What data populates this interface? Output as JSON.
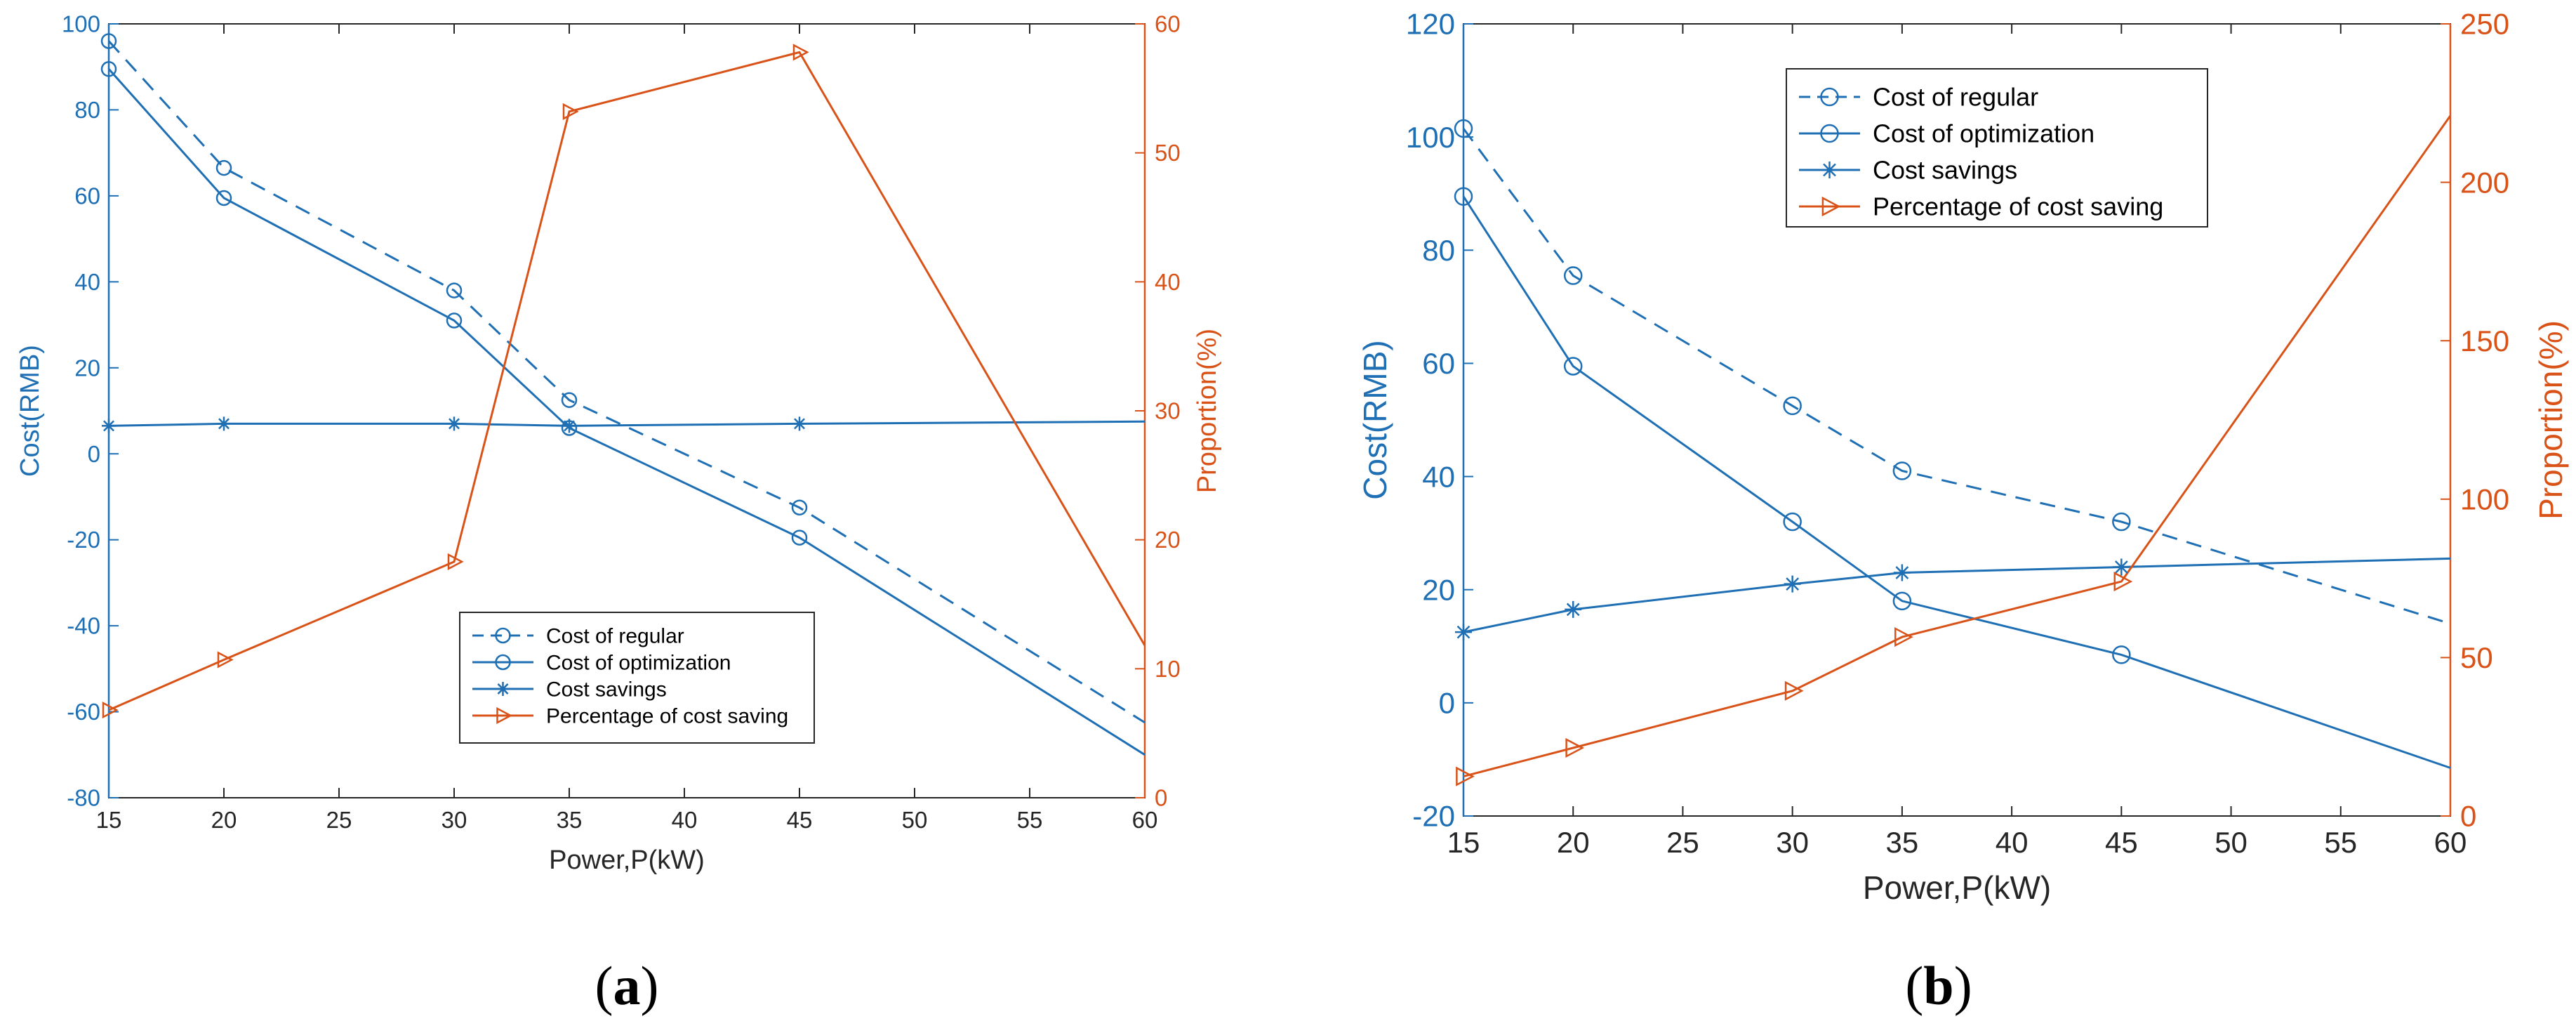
{
  "colors": {
    "blue": "#1f6fb4",
    "orange": "#d95319",
    "axis": "#262626",
    "panel_caption": "#000000"
  },
  "chart_data": [
    {
      "panel_label": "a",
      "type": "line",
      "xlabel": "Power,P(kW)",
      "ylabel": "Cost(RMB)",
      "ylabel_right": "Proportion(%)",
      "xlim": [
        15,
        60
      ],
      "ylim": [
        -80,
        100
      ],
      "ylim_right": [
        0,
        60
      ],
      "xticks": [
        "15",
        "20",
        "25",
        "30",
        "35",
        "40",
        "45",
        "50",
        "55",
        "60"
      ],
      "yticks": [
        "-80",
        "-60",
        "-40",
        "-20",
        "0",
        "20",
        "40",
        "60",
        "80",
        "100"
      ],
      "yticks_right": [
        "0",
        "10",
        "20",
        "30",
        "40",
        "50",
        "60"
      ],
      "legend_position": "bottom-center",
      "series": [
        {
          "name": "Cost of regular",
          "axis": "left",
          "style": "dashed",
          "marker": "circle",
          "x": [
            15,
            20,
            30,
            35,
            45,
            60
          ],
          "y": [
            96,
            66.5,
            38,
            12.5,
            -12.5,
            -62.5
          ],
          "marker_count": 5
        },
        {
          "name": "Cost of optimization",
          "axis": "left",
          "style": "solid",
          "marker": "circle",
          "x": [
            15,
            20,
            30,
            35,
            45,
            60
          ],
          "y": [
            89.5,
            59.5,
            31,
            6,
            -19.5,
            -70
          ],
          "marker_count": 5
        },
        {
          "name": "Cost savings",
          "axis": "left",
          "style": "solid",
          "marker": "star",
          "x": [
            15,
            20,
            30,
            35,
            45,
            60
          ],
          "y": [
            6.5,
            7,
            7,
            6.5,
            7,
            7.5
          ],
          "marker_count": 5
        },
        {
          "name": "Percentage of cost saving",
          "axis": "right",
          "style": "solid",
          "marker": "triangle-right",
          "x": [
            15,
            20,
            30,
            35,
            45,
            60
          ],
          "y": [
            6.8,
            10.7,
            18.3,
            53.2,
            57.8,
            11.8
          ],
          "marker_count": 5
        }
      ]
    },
    {
      "panel_label": "b",
      "type": "line",
      "xlabel": "Power,P(kW)",
      "ylabel": "Cost(RMB)",
      "ylabel_right": "Proportion(%)",
      "xlim": [
        15,
        60
      ],
      "ylim": [
        -20,
        120
      ],
      "ylim_right": [
        0,
        250
      ],
      "xticks": [
        "15",
        "20",
        "25",
        "30",
        "35",
        "40",
        "45",
        "50",
        "55",
        "60"
      ],
      "yticks": [
        "-20",
        "0",
        "20",
        "40",
        "60",
        "80",
        "100",
        "120"
      ],
      "yticks_right": [
        "0",
        "50",
        "100",
        "150",
        "200",
        "250"
      ],
      "legend_position": "top-center",
      "series": [
        {
          "name": "Cost of regular",
          "axis": "left",
          "style": "dashed",
          "marker": "circle",
          "x": [
            15,
            20,
            30,
            35,
            45,
            60
          ],
          "y": [
            101.5,
            75.5,
            52.5,
            41,
            32,
            14
          ],
          "marker_count": 5
        },
        {
          "name": "Cost of optimization",
          "axis": "left",
          "style": "solid",
          "marker": "circle",
          "x": [
            15,
            20,
            30,
            35,
            45,
            60
          ],
          "y": [
            89.5,
            59.5,
            32,
            18,
            8.5,
            -11.5
          ],
          "marker_count": 5
        },
        {
          "name": "Cost savings",
          "axis": "left",
          "style": "solid",
          "marker": "star",
          "x": [
            15,
            20,
            30,
            35,
            45,
            60
          ],
          "y": [
            12.5,
            16.5,
            21,
            23,
            24,
            25.5
          ],
          "marker_count": 5
        },
        {
          "name": "Percentage of cost saving",
          "axis": "right",
          "style": "solid",
          "marker": "triangle-right",
          "x": [
            15,
            20,
            30,
            35,
            45,
            60
          ],
          "y": [
            12.5,
            21.5,
            39.5,
            56.5,
            74,
            221
          ],
          "marker_count": 5
        }
      ]
    }
  ]
}
